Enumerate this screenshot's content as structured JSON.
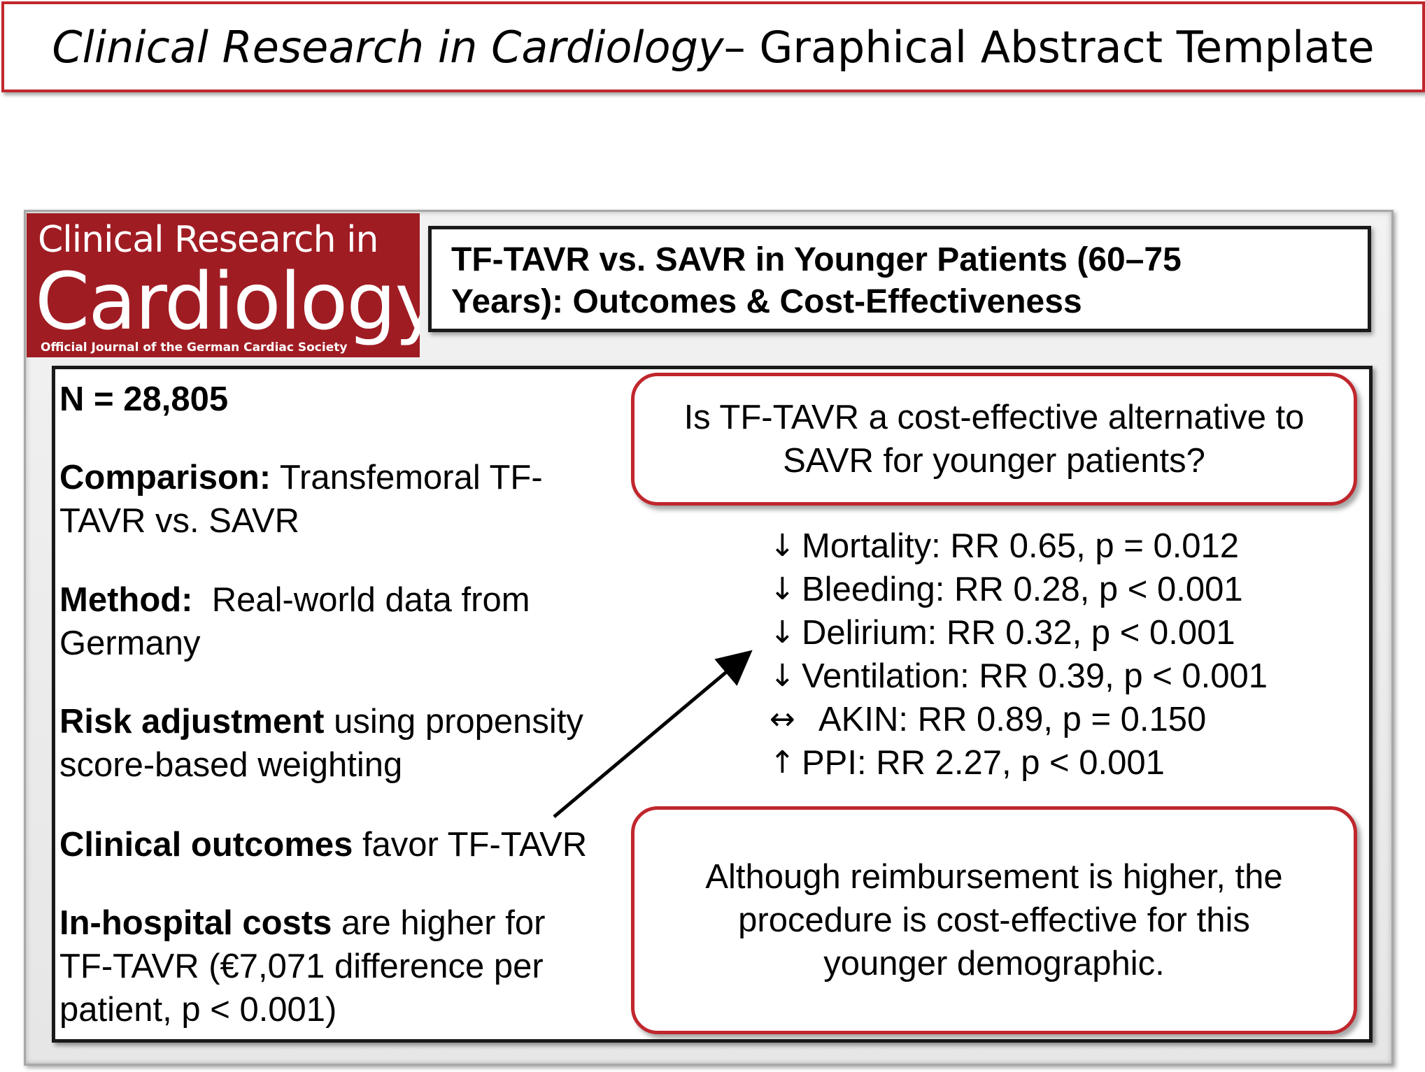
{
  "header": {
    "journal": "Clinical Research in Cardiology",
    "rest": " – Graphical Abstract Template"
  },
  "logo": {
    "line1": "Clinical Research in",
    "line2": "Cardiology",
    "line3": "Official Journal of the German Cardiac Society"
  },
  "title": {
    "line1": "TF-TAVR vs. SAVR in Younger Patients (60–75",
    "line2": "Years): Outcomes & Cost-Effectiveness"
  },
  "left": {
    "n": "N = 28,805",
    "comparison_label": "Comparison:",
    "comparison_l1": " Transfemoral TF-",
    "comparison_l2": "TAVR vs. SAVR",
    "method_label": "Method:",
    "method_l1": "  Real-world data from",
    "method_l2": "Germany",
    "risk_label": "Risk adjustment",
    "risk_l1": " using propensity",
    "risk_l2": "score-based weighting",
    "clinical_label": "Clinical outcomes",
    "clinical_text": " favor TF-TAVR",
    "costs_label": "In-hospital costs",
    "costs_l1": " are higher for",
    "costs_l2": "TF-TAVR (€7,071 difference per",
    "costs_l3": "patient, p < 0.001)"
  },
  "question": {
    "line1": "Is TF-TAVR a cost-effective alternative to",
    "line2": "SAVR for younger patients?"
  },
  "outcomes": [
    {
      "symbol": "↓",
      "text": "Mortality: RR 0.65, p = 0.012"
    },
    {
      "symbol": "↓",
      "text": "Bleeding: RR 0.28, p < 0.001"
    },
    {
      "symbol": "↓",
      "text": "Delirium: RR 0.32, p < 0.001"
    },
    {
      "symbol": "↓",
      "text": "Ventilation: RR 0.39, p < 0.001"
    },
    {
      "symbol": "↔",
      "text": "AKIN: RR 0.89, p = 0.150"
    },
    {
      "symbol": "↑",
      "text": "PPI: RR 2.27, p < 0.001"
    }
  ],
  "conclusion": {
    "line1": "Although reimbursement is higher, the",
    "line2": "procedure is cost-effective for this",
    "line3": "younger demographic."
  }
}
